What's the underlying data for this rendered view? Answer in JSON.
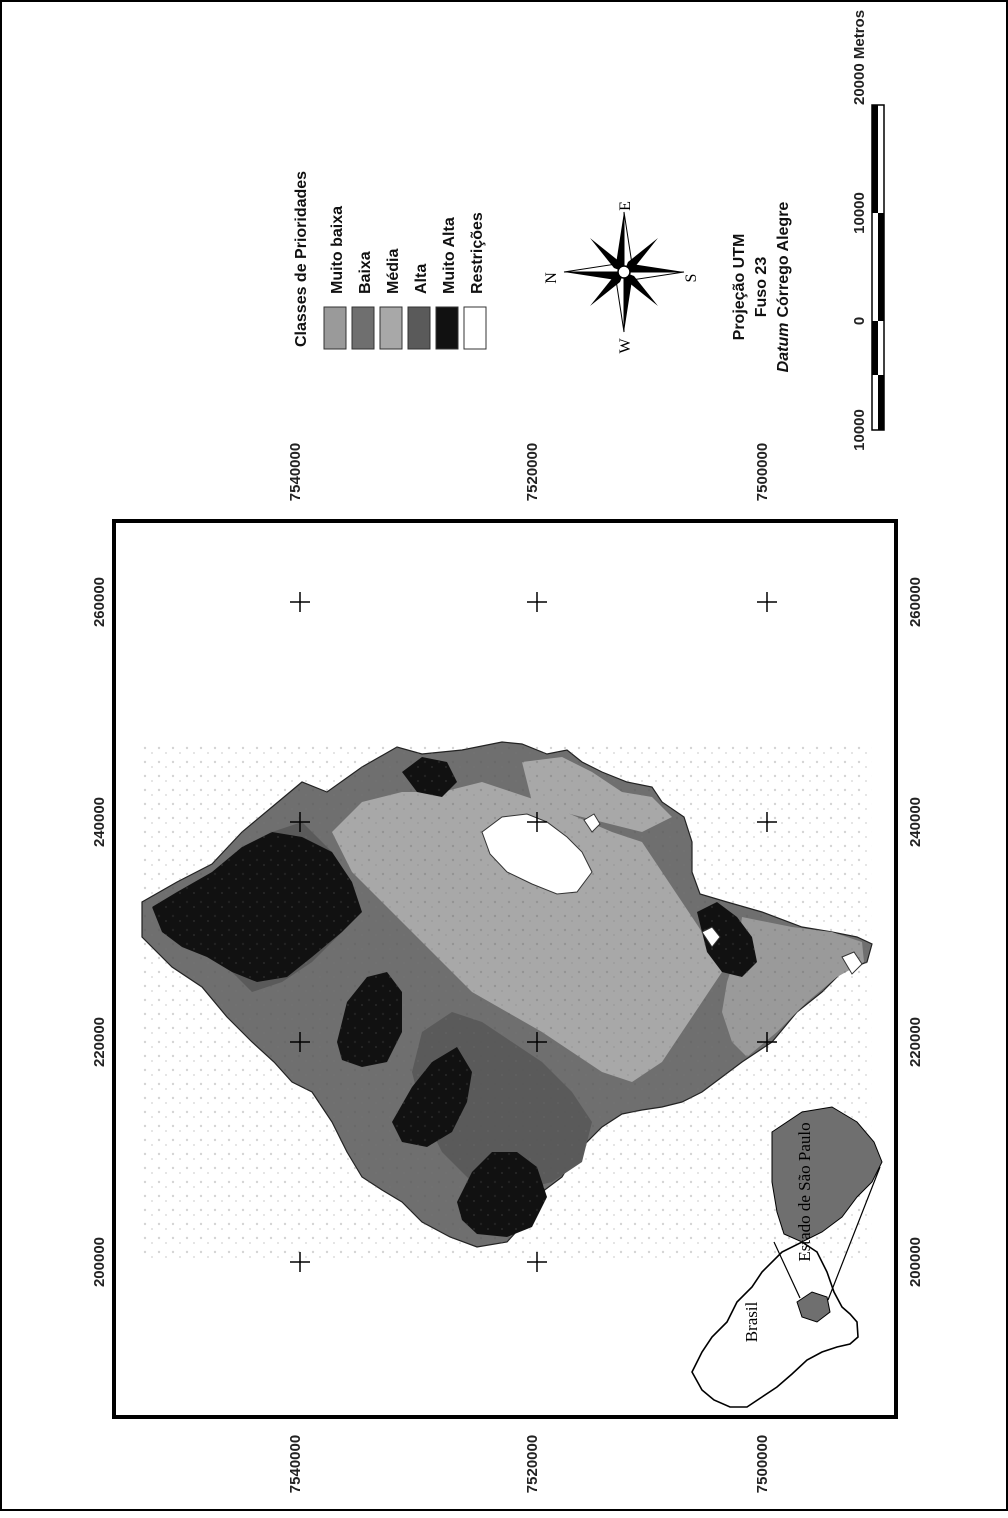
{
  "legend": {
    "title": "Classes de Prioridades",
    "items": [
      {
        "label": "Muito baixa",
        "color": "#9a9a9a"
      },
      {
        "label": "Baixa",
        "color": "#6f6f6f"
      },
      {
        "label": "Média",
        "color": "#a8a8a8"
      },
      {
        "label": "Alta",
        "color": "#5a5a5a"
      },
      {
        "label": "Muito Alta",
        "color": "#111111"
      },
      {
        "label": "Restrições",
        "color": "#ffffff"
      }
    ]
  },
  "compass": {
    "n": "N",
    "s": "S",
    "e": "E",
    "w": "W"
  },
  "projection": {
    "line1": "Projeção UTM",
    "line2": "Fuso 23",
    "datum_word": "Datum",
    "datum_name": "Córrego Alegre"
  },
  "scale_bar": {
    "labels": [
      "10000",
      "0",
      "10000",
      "20000 Metros"
    ]
  },
  "axes": {
    "easting_ticks": [
      "200000",
      "220000",
      "240000",
      "260000"
    ],
    "northing_ticks": [
      "7540000",
      "7520000",
      "7500000"
    ]
  },
  "inset": {
    "country_label": "Brasil",
    "state_label": "Estado de São Paulo"
  }
}
